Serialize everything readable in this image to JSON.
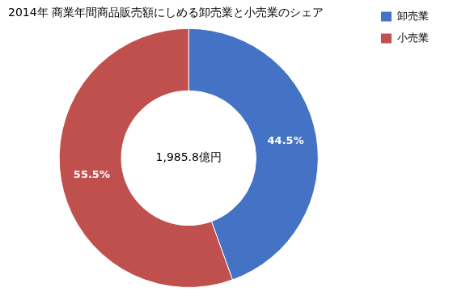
{
  "chart_data": {
    "type": "doughnut",
    "title": "2014年 商業年間商品販売額にしめる卸売業と小売業のシェア",
    "categories": [
      "卸売業",
      "小売業"
    ],
    "values": [
      44.5,
      55.5
    ],
    "value_labels": [
      "44.5%",
      "55.5%"
    ],
    "colors": [
      "#4472C4",
      "#C0504D"
    ],
    "data_labels": true,
    "annotations": [
      "1,985.8億円"
    ],
    "legend": "upper right"
  }
}
